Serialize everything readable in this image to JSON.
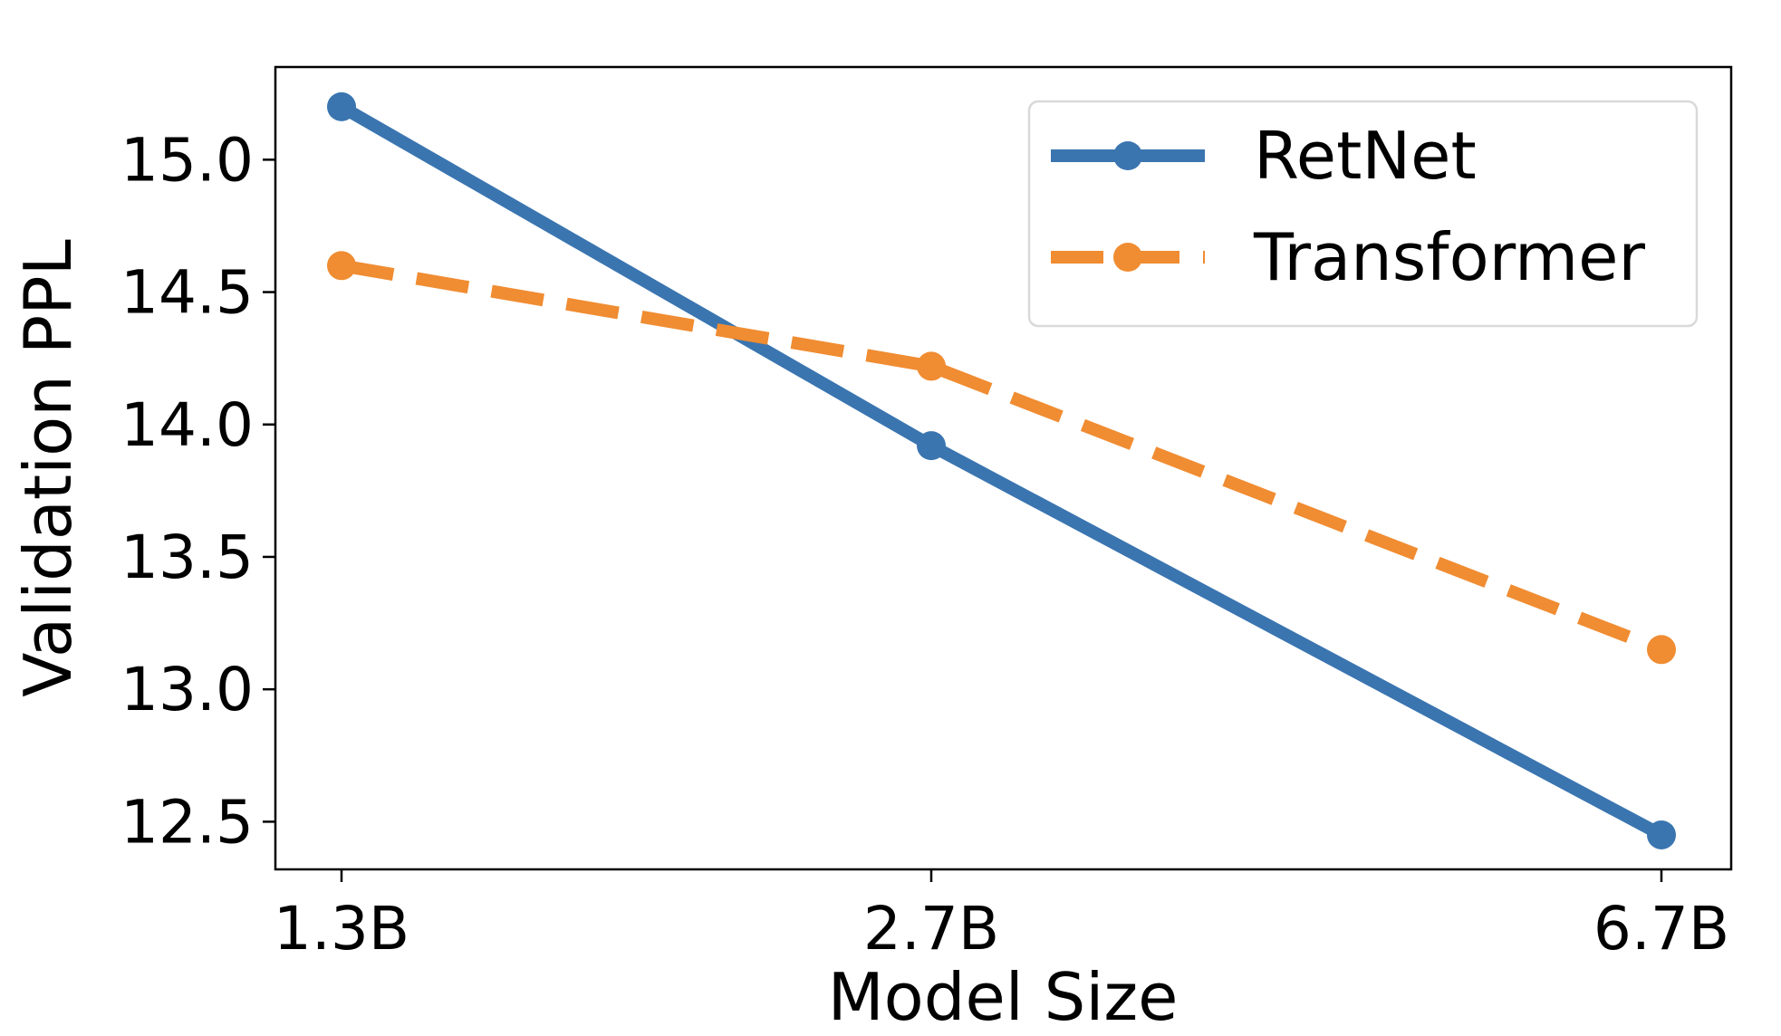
{
  "chart_data": {
    "type": "line",
    "title": "",
    "xlabel": "Model Size",
    "ylabel": "Validation PPL",
    "categories": [
      "1.3B",
      "2.7B",
      "6.7B"
    ],
    "ylim": [
      12.32,
      15.35
    ],
    "yticks": [
      "12.5",
      "13.0",
      "13.5",
      "14.0",
      "14.5",
      "15.0"
    ],
    "grid": false,
    "legend_position": "top-right",
    "series": [
      {
        "name": "RetNet",
        "values": [
          15.2,
          13.92,
          12.45
        ],
        "color": "#3a75b0",
        "line_style": "solid",
        "marker": "circle"
      },
      {
        "name": "Transformer",
        "values": [
          14.6,
          14.22,
          13.15
        ],
        "color": "#f08c32",
        "line_style": "dashed",
        "marker": "circle"
      }
    ]
  }
}
